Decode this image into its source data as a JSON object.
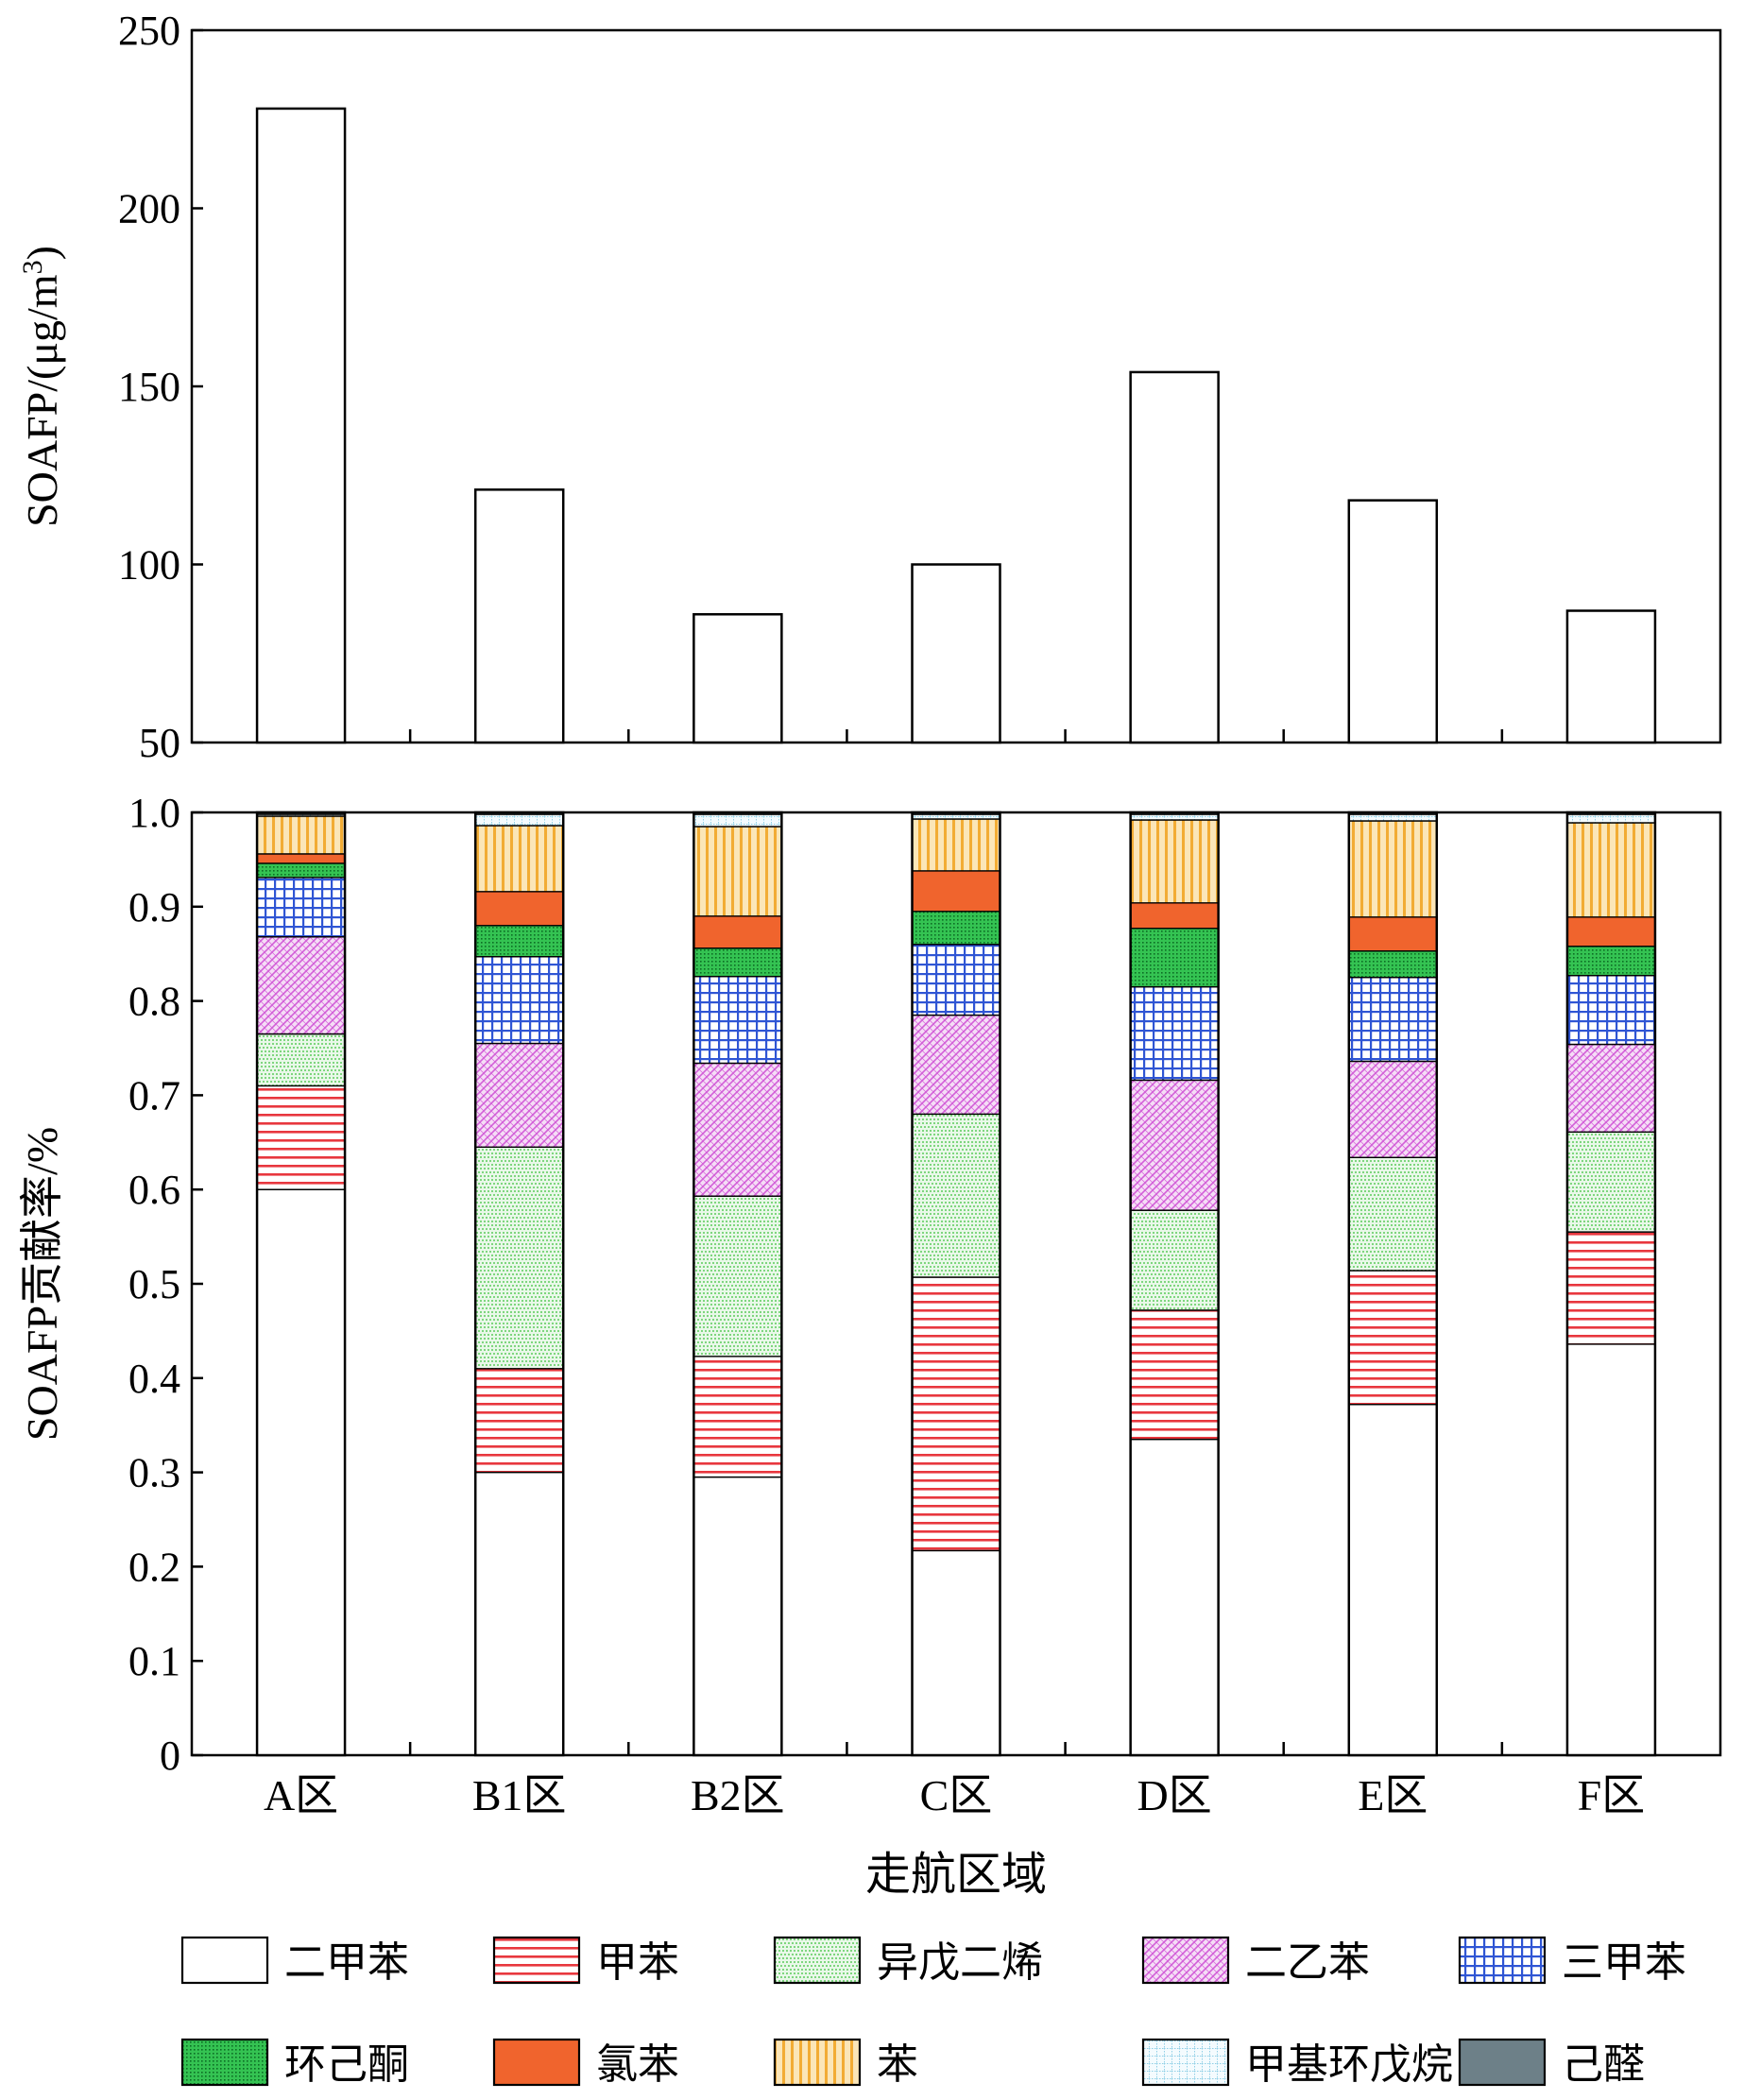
{
  "chart_data": [
    {
      "type": "bar",
      "categories": [
        "A区",
        "B1区",
        "B2区",
        "C区",
        "D区",
        "E区",
        "F区"
      ],
      "values": [
        228,
        121,
        86,
        100,
        154,
        118,
        87
      ],
      "ylabel": "SOAFP/(μg/m",
      "ylabel_sup": "3",
      "ylabel_close": ")",
      "ylim": [
        50,
        250
      ],
      "yticks": [
        "50",
        "100",
        "150",
        "200",
        "250"
      ]
    },
    {
      "type": "bar",
      "stacked": true,
      "categories": [
        "A区",
        "B1区",
        "B2区",
        "C区",
        "D区",
        "E区",
        "F区"
      ],
      "xlabel": "走航区域",
      "ylabel": "SOAFP贡献率/%",
      "ylim": [
        0,
        1.0
      ],
      "yticks": [
        "0",
        "0.1",
        "0.2",
        "0.3",
        "0.4",
        "0.5",
        "0.6",
        "0.7",
        "0.8",
        "0.9",
        "1.0"
      ],
      "legend_position": "bottom",
      "series": [
        {
          "name": "二甲苯",
          "color": "#ffffff",
          "pattern": "blank",
          "values": [
            0.6,
            0.3,
            0.295,
            0.217,
            0.335,
            0.372,
            0.436
          ]
        },
        {
          "name": "甲苯",
          "color": "#e8373e",
          "pattern": "hlines",
          "values": [
            0.11,
            0.11,
            0.128,
            0.29,
            0.137,
            0.142,
            0.119
          ]
        },
        {
          "name": "异戊二烯",
          "color": "#7ed67e",
          "pattern": "dots",
          "values": [
            0.055,
            0.235,
            0.17,
            0.173,
            0.106,
            0.12,
            0.106
          ]
        },
        {
          "name": "二乙苯",
          "color": "#d35fd8",
          "pattern": "diagonal",
          "values": [
            0.103,
            0.11,
            0.141,
            0.105,
            0.138,
            0.102,
            0.093
          ]
        },
        {
          "name": "三甲苯",
          "color": "#2f55d4",
          "pattern": "grid",
          "values": [
            0.063,
            0.092,
            0.092,
            0.075,
            0.099,
            0.089,
            0.073
          ]
        },
        {
          "name": "环己酮",
          "color": "#34c352",
          "pattern": "sparse-dots",
          "values": [
            0.015,
            0.033,
            0.03,
            0.035,
            0.062,
            0.028,
            0.031
          ]
        },
        {
          "name": "氯苯",
          "color": "#f0642d",
          "pattern": "solid",
          "values": [
            0.01,
            0.036,
            0.034,
            0.043,
            0.027,
            0.036,
            0.031
          ]
        },
        {
          "name": "苯",
          "color": "#f2ac34",
          "pattern": "vlines",
          "values": [
            0.04,
            0.07,
            0.095,
            0.055,
            0.088,
            0.102,
            0.1
          ]
        },
        {
          "name": "甲基环戊烷",
          "color": "#8ecfe6",
          "pattern": "fine-grid",
          "values": [
            0.002,
            0.012,
            0.013,
            0.005,
            0.006,
            0.007,
            0.009
          ]
        },
        {
          "name": "己醛",
          "color": "#6d8088",
          "pattern": "solid",
          "values": [
            0.002,
            0.002,
            0.002,
            0.002,
            0.002,
            0.002,
            0.002
          ]
        }
      ]
    }
  ]
}
